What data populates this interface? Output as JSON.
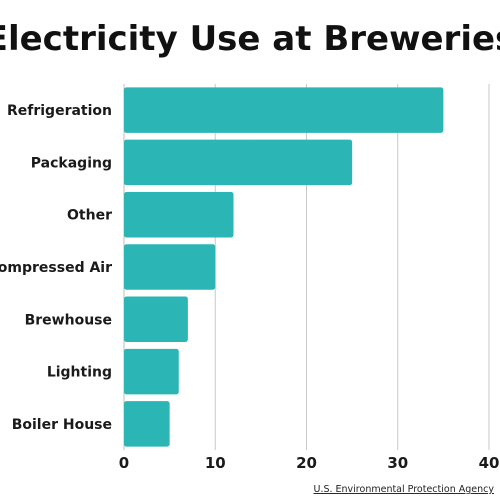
{
  "chart_data": {
    "type": "bar",
    "orientation": "horizontal",
    "title": "Electricity Use at Breweries",
    "categories": [
      "Refrigeration",
      "Packaging",
      "Other",
      "Compressed Air",
      "Brewhouse",
      "Lighting",
      "Boiler House"
    ],
    "values": [
      35,
      25,
      12,
      10,
      7,
      6,
      5
    ],
    "xlim": [
      0,
      40
    ],
    "xticks": [
      0,
      10,
      20,
      30,
      40
    ],
    "grid": true,
    "bar_color": "#2bb5b5",
    "source": "U.S. Environmental Protection Agency"
  }
}
